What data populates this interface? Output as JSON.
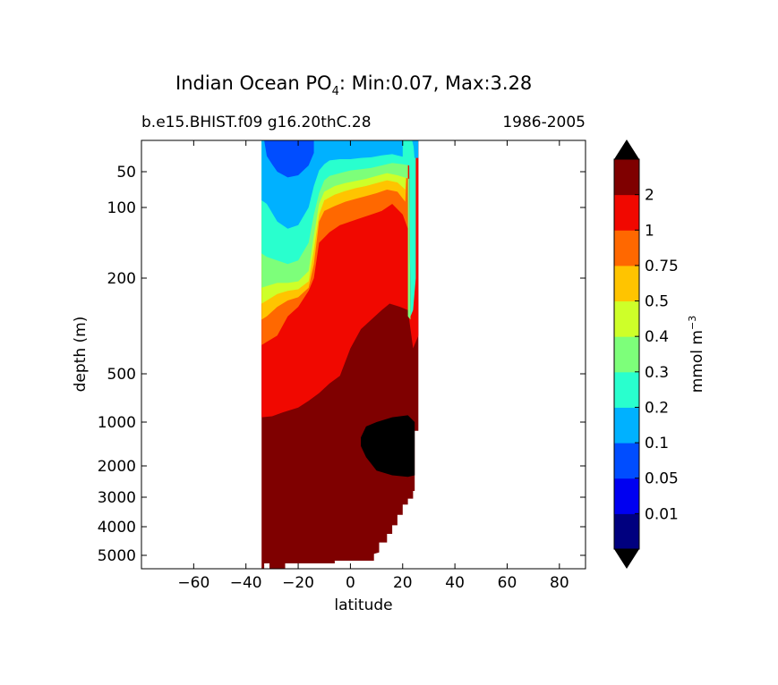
{
  "chart_data": {
    "type": "contour",
    "title_main": "Indian Ocean PO",
    "title_sub": "4",
    "title_tail": ": Min:0.07, Max:3.28",
    "subtitle_left": "b.e15.BHIST.f09 g16.20thC.28",
    "subtitle_right": "1986-2005",
    "xlabel": "latitude",
    "ylabel": "depth (m)",
    "xlim": [
      -80,
      90
    ],
    "ylim": [
      5500,
      0
    ],
    "y_scale": "custom stretched (upper ocean expanded)",
    "x_ticks": [
      -60,
      -40,
      -20,
      0,
      20,
      40,
      60,
      80
    ],
    "x_tick_labels": [
      "−60",
      "−40",
      "−20",
      "0",
      "20",
      "40",
      "60",
      "80"
    ],
    "y_ticks": [
      50,
      100,
      200,
      500,
      1000,
      2000,
      3000,
      4000,
      5000
    ],
    "y_tick_labels": [
      "50",
      "100",
      "200",
      "500",
      "1000",
      "2000",
      "3000",
      "4000",
      "5000"
    ],
    "data_extent": {
      "lat_min": -34,
      "lat_max": 26
    },
    "colorbar": {
      "label": "mmol m",
      "label_sup": "−3",
      "levels": [
        0,
        0.01,
        0.05,
        0.1,
        0.2,
        0.3,
        0.4,
        0.5,
        0.75,
        1,
        2,
        3.28
      ],
      "tick_labels": [
        "0.01",
        "0.05",
        "0.1",
        "0.2",
        "0.3",
        "0.4",
        "0.5",
        "0.75",
        "1",
        "2"
      ],
      "colors": [
        "#00007f",
        "#0000f1",
        "#004dff",
        "#00b1ff",
        "#29ffce",
        "#7dff7a",
        "#ceff29",
        "#ffc400",
        "#ff6800",
        "#f10800",
        "#7f0000"
      ],
      "under_color": "#000000",
      "over_color": "#000000",
      "extend": "both"
    },
    "missing_region_color": "#000000",
    "features": {
      "south_low": {
        "center_lat": -24,
        "depth_min_m": 220,
        "value_min": 0.07
      },
      "north_deep_black": {
        "lat_range": [
          4,
          26
        ],
        "depth_range_m": [
          900,
          2300
        ]
      }
    }
  }
}
